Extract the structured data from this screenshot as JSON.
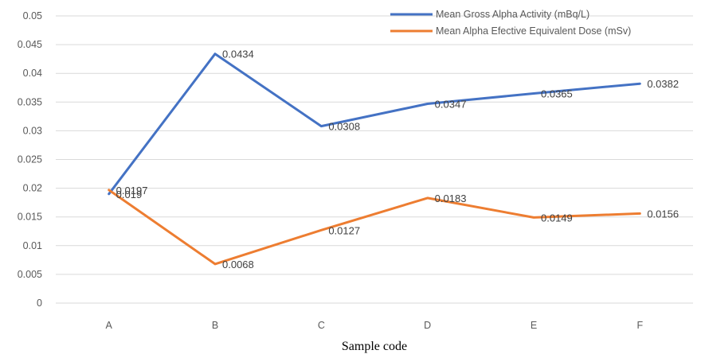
{
  "chart_data": {
    "type": "line",
    "categories": [
      "A",
      "B",
      "C",
      "D",
      "E",
      "F"
    ],
    "series": [
      {
        "name": "Mean Gross Alpha Activity (mBq/L)",
        "values": [
          0.019,
          0.0434,
          0.0308,
          0.0347,
          0.0365,
          0.0382
        ],
        "labels": [
          "0.019",
          "0.0434",
          "0.0308",
          "0.0347",
          "0.0365",
          "0.0382"
        ],
        "color": "#4472C4"
      },
      {
        "name": "Mean Alpha Efective Equivalent Dose (mSv)",
        "values": [
          0.0197,
          0.0068,
          0.0127,
          0.0183,
          0.0149,
          0.0156
        ],
        "labels": [
          "0.0197",
          "0.0068",
          "0.0127",
          "0.0183",
          "0.0149",
          "0.0156"
        ],
        "color": "#ED7D31"
      }
    ],
    "title": "",
    "xlabel": "Sample code",
    "ylabel": "",
    "ylim": [
      0,
      0.05
    ],
    "yticks": [
      "0",
      "0.005",
      "0.01",
      "0.015",
      "0.02",
      "0.025",
      "0.03",
      "0.035",
      "0.04",
      "0.045",
      "0.05"
    ],
    "grid": true,
    "legend_position": "top-right"
  }
}
